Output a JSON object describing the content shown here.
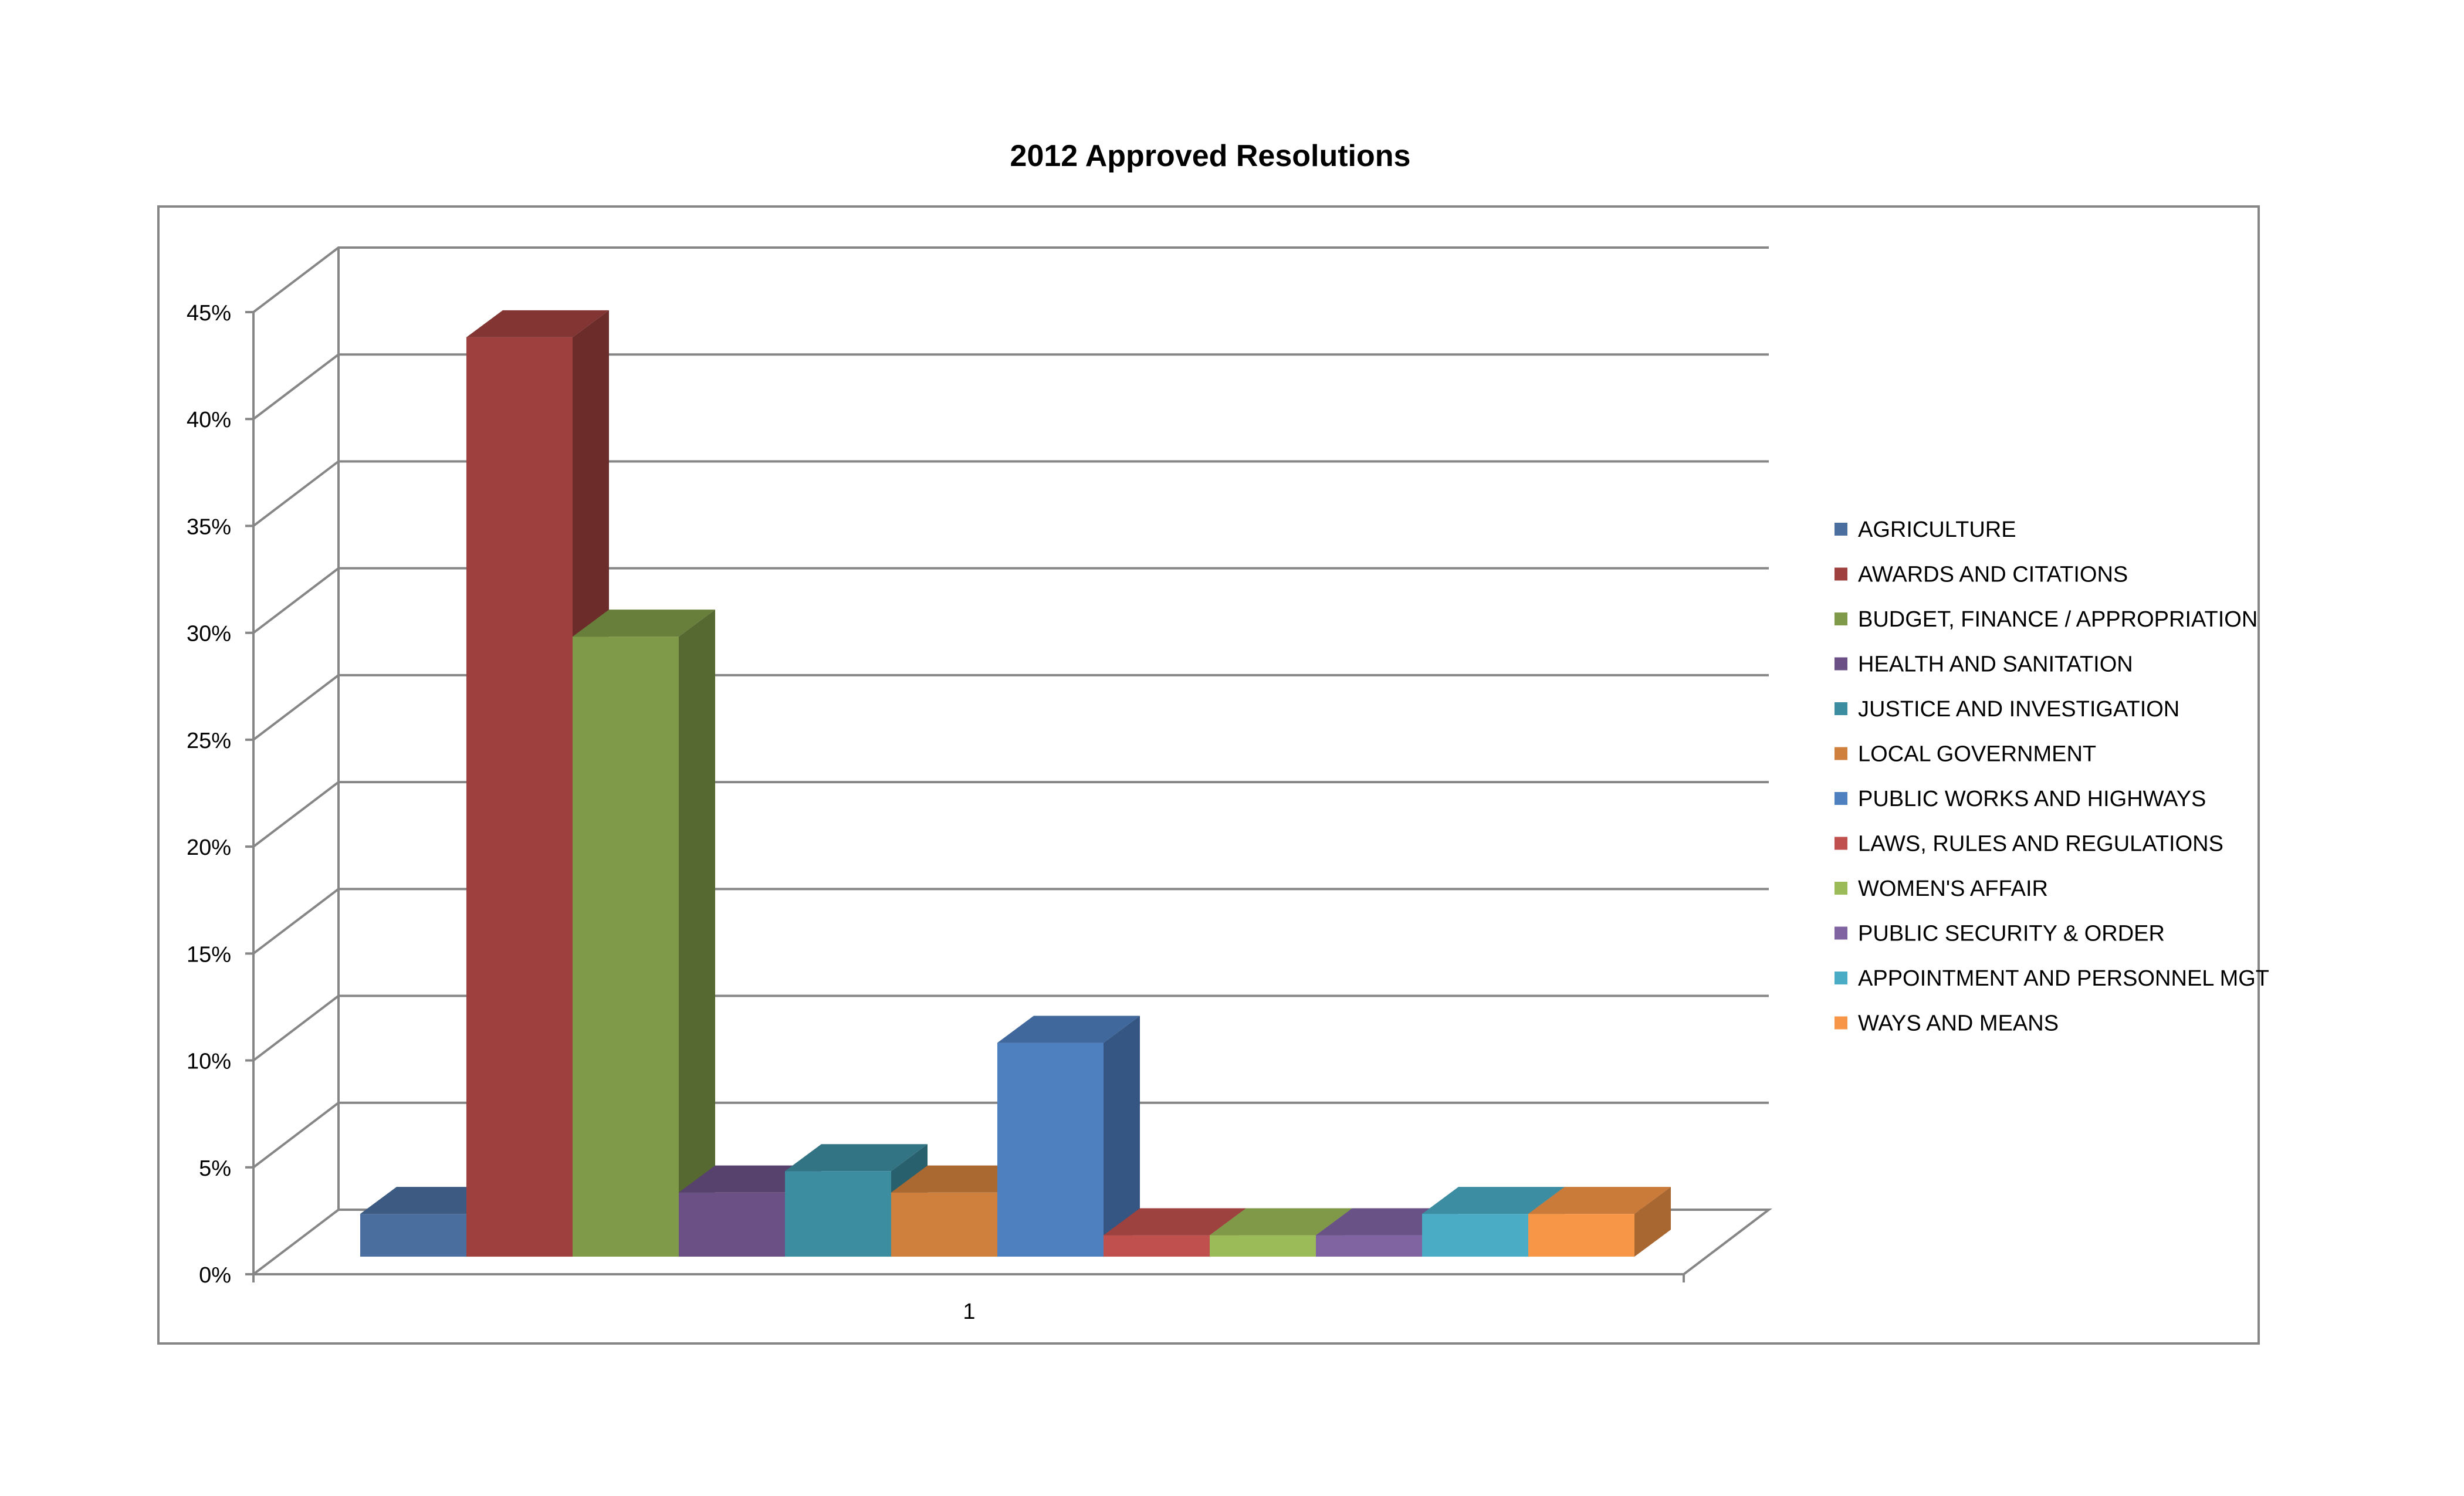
{
  "chart_data": {
    "type": "bar",
    "title": "2012 Approved Resolutions",
    "xlabel": "",
    "ylabel": "",
    "categories": [
      "1"
    ],
    "ylim": [
      0,
      45
    ],
    "yticks": [
      0,
      5,
      10,
      15,
      20,
      25,
      30,
      35,
      40,
      45
    ],
    "ytick_suffix": "%",
    "grid": true,
    "legend_position": "right",
    "style": "3d-clustered-column",
    "series": [
      {
        "name": "AGRICULTURE",
        "values": [
          2.0
        ],
        "color": "#4A6E9E"
      },
      {
        "name": "AWARDS AND CITATIONS",
        "values": [
          43.0
        ],
        "color": "#9E413E"
      },
      {
        "name": "BUDGET, FINANCE / APPROPRIATION",
        "values": [
          29.0
        ],
        "color": "#7F9A48"
      },
      {
        "name": "HEALTH AND SANITATION",
        "values": [
          3.0
        ],
        "color": "#6A5085"
      },
      {
        "name": "JUSTICE AND INVESTIGATION",
        "values": [
          4.0
        ],
        "color": "#3D8DA0"
      },
      {
        "name": "LOCAL GOVERNMENT",
        "values": [
          3.0
        ],
        "color": "#D0803D"
      },
      {
        "name": "PUBLIC WORKS AND HIGHWAYS",
        "values": [
          10.0
        ],
        "color": "#4E7FBF"
      },
      {
        "name": "LAWS, RULES AND REGULATIONS",
        "values": [
          1.0
        ],
        "color": "#C0504D"
      },
      {
        "name": "WOMEN'S AFFAIR",
        "values": [
          1.0
        ],
        "color": "#9BBB59"
      },
      {
        "name": "PUBLIC SECURITY & ORDER",
        "values": [
          1.0
        ],
        "color": "#8064A2"
      },
      {
        "name": "APPOINTMENT AND PERSONNEL MGT",
        "values": [
          2.0
        ],
        "color": "#4BACC6"
      },
      {
        "name": "WAYS AND MEANS",
        "values": [
          2.0
        ],
        "color": "#F79646"
      }
    ]
  }
}
